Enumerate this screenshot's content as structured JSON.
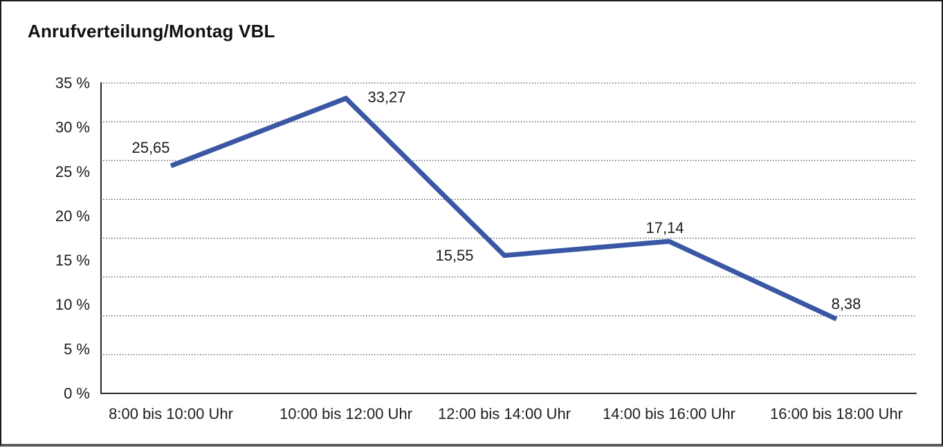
{
  "title": "Anrufverteilung/Montag VBL",
  "chart_data": {
    "type": "line",
    "title": "Anrufverteilung/Montag VBL",
    "categories": [
      "8:00 bis 10:00 Uhr",
      "10:00 bis 12:00 Uhr",
      "12:00 bis 14:00 Uhr",
      "14:00 bis 16:00 Uhr",
      "16:00 bis 18:00 Uhr"
    ],
    "values": [
      25.65,
      33.27,
      15.55,
      17.14,
      8.38
    ],
    "value_labels": [
      "25,65",
      "33,27",
      "15,55",
      "17,14",
      "8,38"
    ],
    "y_tick_labels": [
      "35 %",
      "30 %",
      "25 %",
      "20 %",
      "15 %",
      "10 %",
      "5 %",
      "0 %"
    ],
    "y_ticks": [
      35,
      30,
      25,
      20,
      15,
      10,
      5,
      0
    ],
    "ylim": [
      0,
      35
    ],
    "xlabel": "",
    "ylabel": "",
    "legend": "none",
    "grid": "horizontal-dotted",
    "line_color": "#3a57a4",
    "axis_color": "#262626",
    "gridline_color": "#3d3d3d",
    "text_color": "#1c1c1c"
  }
}
